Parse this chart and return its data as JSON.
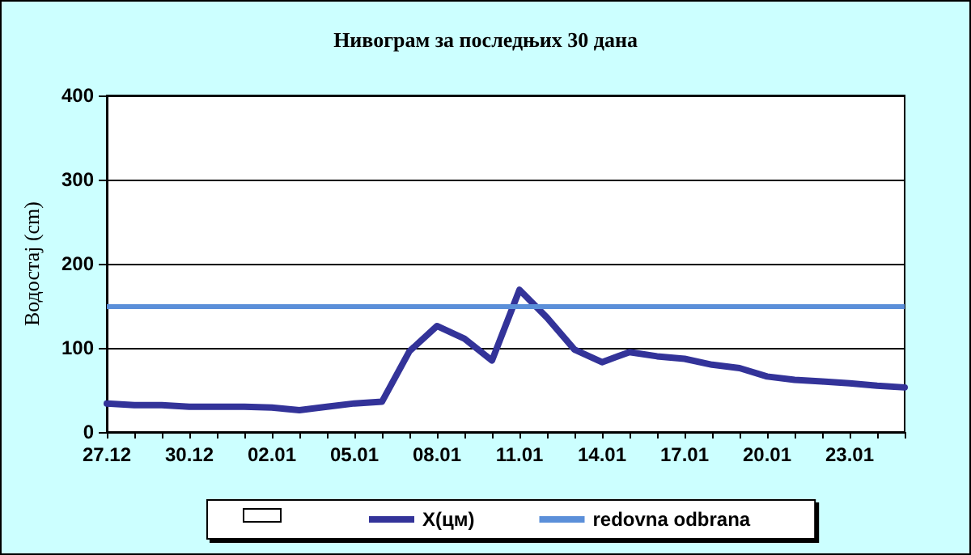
{
  "chart_data": {
    "type": "line",
    "title": "Нивограм за последњих 30 дана",
    "ylabel": "Водостај (cm)",
    "categories": [
      "27.12",
      null,
      null,
      "30.12",
      null,
      null,
      "02.01",
      null,
      null,
      "05.01",
      null,
      null,
      "08.01",
      null,
      null,
      "11.01",
      null,
      null,
      "14.01",
      null,
      null,
      "17.01",
      null,
      null,
      "20.01",
      null,
      null,
      "23.01",
      null,
      null
    ],
    "series": [
      {
        "name": "X(цм)",
        "color": "#333399",
        "values": [
          34,
          32,
          32,
          30,
          30,
          30,
          29,
          26,
          30,
          34,
          36,
          96,
          126,
          111,
          85,
          169,
          136,
          98,
          83,
          95,
          90,
          87,
          80,
          76,
          66,
          62,
          60,
          58,
          55,
          53
        ]
      }
    ],
    "ref_lines": [
      {
        "axis": "y",
        "value": 150,
        "label": "redovna odbrana",
        "color": "#5b8fd9"
      }
    ],
    "ylim": [
      0,
      400
    ],
    "yticks": [
      0,
      100,
      200,
      300,
      400
    ],
    "grid": "y",
    "legend": "bottom",
    "marker": "none",
    "line_style": "solid"
  }
}
